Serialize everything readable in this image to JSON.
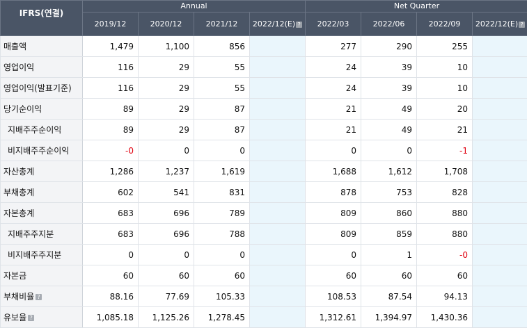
{
  "header": {
    "corner_label": "IFRS(연결)",
    "annual_label": "Annual",
    "quarter_label": "Net Quarter",
    "periods": [
      "2019/12",
      "2020/12",
      "2021/12",
      "2022/12(E)",
      "2022/03",
      "2022/06",
      "2022/09",
      "2022/12(E)"
    ],
    "help_glyph": "?"
  },
  "rows": [
    {
      "label": "매출액",
      "cells": [
        "1,479",
        "1,100",
        "856",
        "",
        "277",
        "290",
        "255",
        ""
      ]
    },
    {
      "label": "영업이익",
      "cells": [
        "116",
        "29",
        "55",
        "",
        "24",
        "39",
        "10",
        ""
      ]
    },
    {
      "label": "영업이익(발표기준)",
      "cells": [
        "116",
        "29",
        "55",
        "",
        "24",
        "39",
        "10",
        ""
      ]
    },
    {
      "label": "당기순이익",
      "cells": [
        "89",
        "29",
        "87",
        "",
        "21",
        "49",
        "20",
        ""
      ]
    },
    {
      "label": "지배주주순이익",
      "cells": [
        "89",
        "29",
        "87",
        "",
        "21",
        "49",
        "21",
        ""
      ]
    },
    {
      "label": "비지배주주순이익",
      "cells": [
        "-0",
        "0",
        "0",
        "",
        "0",
        "0",
        "-1",
        ""
      ]
    },
    {
      "label": "자산총계",
      "cells": [
        "1,286",
        "1,237",
        "1,619",
        "",
        "1,688",
        "1,612",
        "1,708",
        ""
      ]
    },
    {
      "label": "부채총계",
      "cells": [
        "602",
        "541",
        "831",
        "",
        "878",
        "753",
        "828",
        ""
      ]
    },
    {
      "label": "자본총계",
      "cells": [
        "683",
        "696",
        "789",
        "",
        "809",
        "860",
        "880",
        ""
      ]
    },
    {
      "label": "지배주주지분",
      "cells": [
        "683",
        "696",
        "788",
        "",
        "809",
        "859",
        "880",
        ""
      ]
    },
    {
      "label": "비지배주주지분",
      "cells": [
        "0",
        "0",
        "0",
        "",
        "0",
        "1",
        "-0",
        ""
      ]
    },
    {
      "label": "자본금",
      "cells": [
        "60",
        "60",
        "60",
        "",
        "60",
        "60",
        "60",
        ""
      ]
    },
    {
      "label": "부채비율",
      "cells": [
        "88.16",
        "77.69",
        "105.33",
        "",
        "108.53",
        "87.54",
        "94.13",
        ""
      ]
    },
    {
      "label": "유보율",
      "cells": [
        "1,085.18",
        "1,125.26",
        "1,278.45",
        "",
        "1,312.61",
        "1,394.97",
        "1,430.36",
        ""
      ]
    }
  ],
  "colors": {
    "header_bg": "#4a5566",
    "estimate_bg": "#eaf6fc",
    "negative": "#e0000f",
    "label_bg": "#f3f4f6"
  }
}
